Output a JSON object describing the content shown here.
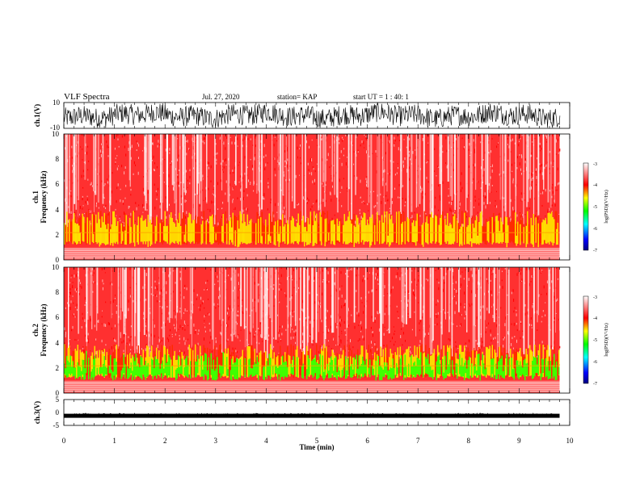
{
  "header": {
    "title": "VLF Spectra",
    "date": "Jul. 27, 2020",
    "station": "station= KAP",
    "start": "start UT =  1 : 40: 1"
  },
  "chart_data": [
    {
      "type": "line",
      "name": "ch1-waveform",
      "ylabel": "ch.1(V)",
      "ylim": [
        -10,
        10
      ],
      "yticks": [
        10,
        -10
      ],
      "xlim": [
        0,
        10
      ],
      "note_values": "dense noisy signal mostly between about -8 and 9 V"
    },
    {
      "type": "heatmap",
      "name": "ch1-spectrogram",
      "ylabel_top": "ch.1",
      "ylabel": "Frequency (kHz)",
      "ylim": [
        0,
        10
      ],
      "yticks": [
        0,
        2,
        4,
        6,
        8,
        10
      ],
      "xlim": [
        0,
        9.8
      ],
      "colorbar": {
        "label": "log(PSD)(V²/Hz)",
        "range": [
          -7,
          -3
        ],
        "ticks": [
          -3,
          -4,
          -5,
          -6,
          -7
        ],
        "colors": [
          "#000080",
          "#0000ff",
          "#00ffff",
          "#00ff00",
          "#ffff00",
          "#ff0000",
          "#ffffff"
        ]
      }
    },
    {
      "type": "heatmap",
      "name": "ch2-spectrogram",
      "ylabel_top": "ch.2",
      "ylabel": "Frequency (kHz)",
      "ylim": [
        0,
        10
      ],
      "yticks": [
        0,
        2,
        4,
        6,
        8,
        10
      ],
      "xlim": [
        0,
        9.8
      ],
      "colorbar": {
        "label": "log(PSD)(V²/Hz)",
        "range": [
          -7,
          -3
        ],
        "ticks": [
          -3,
          -4,
          -5,
          -6,
          -7
        ],
        "colors": [
          "#000080",
          "#0000ff",
          "#00ffff",
          "#00ff00",
          "#ffff00",
          "#ff0000",
          "#ffffff"
        ]
      }
    },
    {
      "type": "line",
      "name": "ch3-waveform",
      "ylabel": "ch.3(V)",
      "ylim": [
        -5,
        5
      ],
      "yticks": [
        5,
        0,
        -5
      ],
      "xlim": [
        0,
        10
      ],
      "xlabel": "Time (min)",
      "xticks": [
        0,
        1,
        2,
        3,
        4,
        5,
        6,
        7,
        8,
        9,
        10
      ],
      "note_values": "thin band near -1 V"
    }
  ]
}
